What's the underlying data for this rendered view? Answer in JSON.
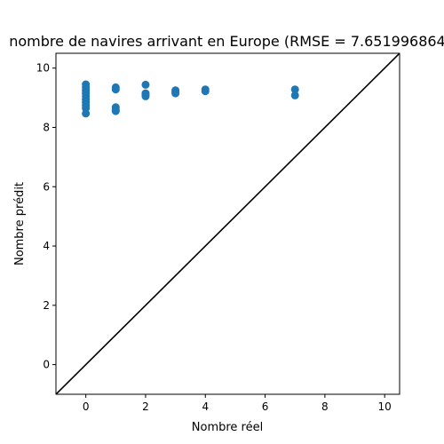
{
  "chart_data": {
    "type": "scatter",
    "title": "nombre de navires arrivant en Europe (RMSE = 7.651996864",
    "xlabel": "Nombre réel",
    "ylabel": "Nombre prédit",
    "xlim": [
      -1,
      10.5
    ],
    "ylim": [
      -1,
      10.5
    ],
    "x_ticks": [
      "0",
      "2",
      "4",
      "6",
      "8",
      "10"
    ],
    "y_ticks": [
      "0",
      "2",
      "4",
      "6",
      "8",
      "10"
    ],
    "grid": false,
    "legend": "none",
    "colors": {
      "points": "#1f77b4",
      "reference_line": "#000000"
    },
    "reference_line": {
      "from": [
        -1,
        -1
      ],
      "to": [
        10.5,
        10.5
      ]
    },
    "series": [
      {
        "x": [
          0,
          0,
          0,
          0,
          0,
          0,
          0,
          0,
          0,
          0,
          1,
          1,
          1,
          1,
          1,
          2,
          2,
          2,
          2,
          3,
          3,
          3,
          4,
          4,
          7,
          7
        ],
        "y": [
          9.45,
          9.35,
          9.25,
          9.15,
          9.05,
          8.95,
          8.85,
          8.75,
          8.65,
          8.47,
          9.35,
          9.28,
          8.68,
          8.6,
          8.55,
          9.44,
          9.15,
          9.1,
          9.05,
          9.25,
          9.2,
          9.15,
          9.28,
          9.22,
          9.28,
          9.08
        ]
      }
    ]
  }
}
